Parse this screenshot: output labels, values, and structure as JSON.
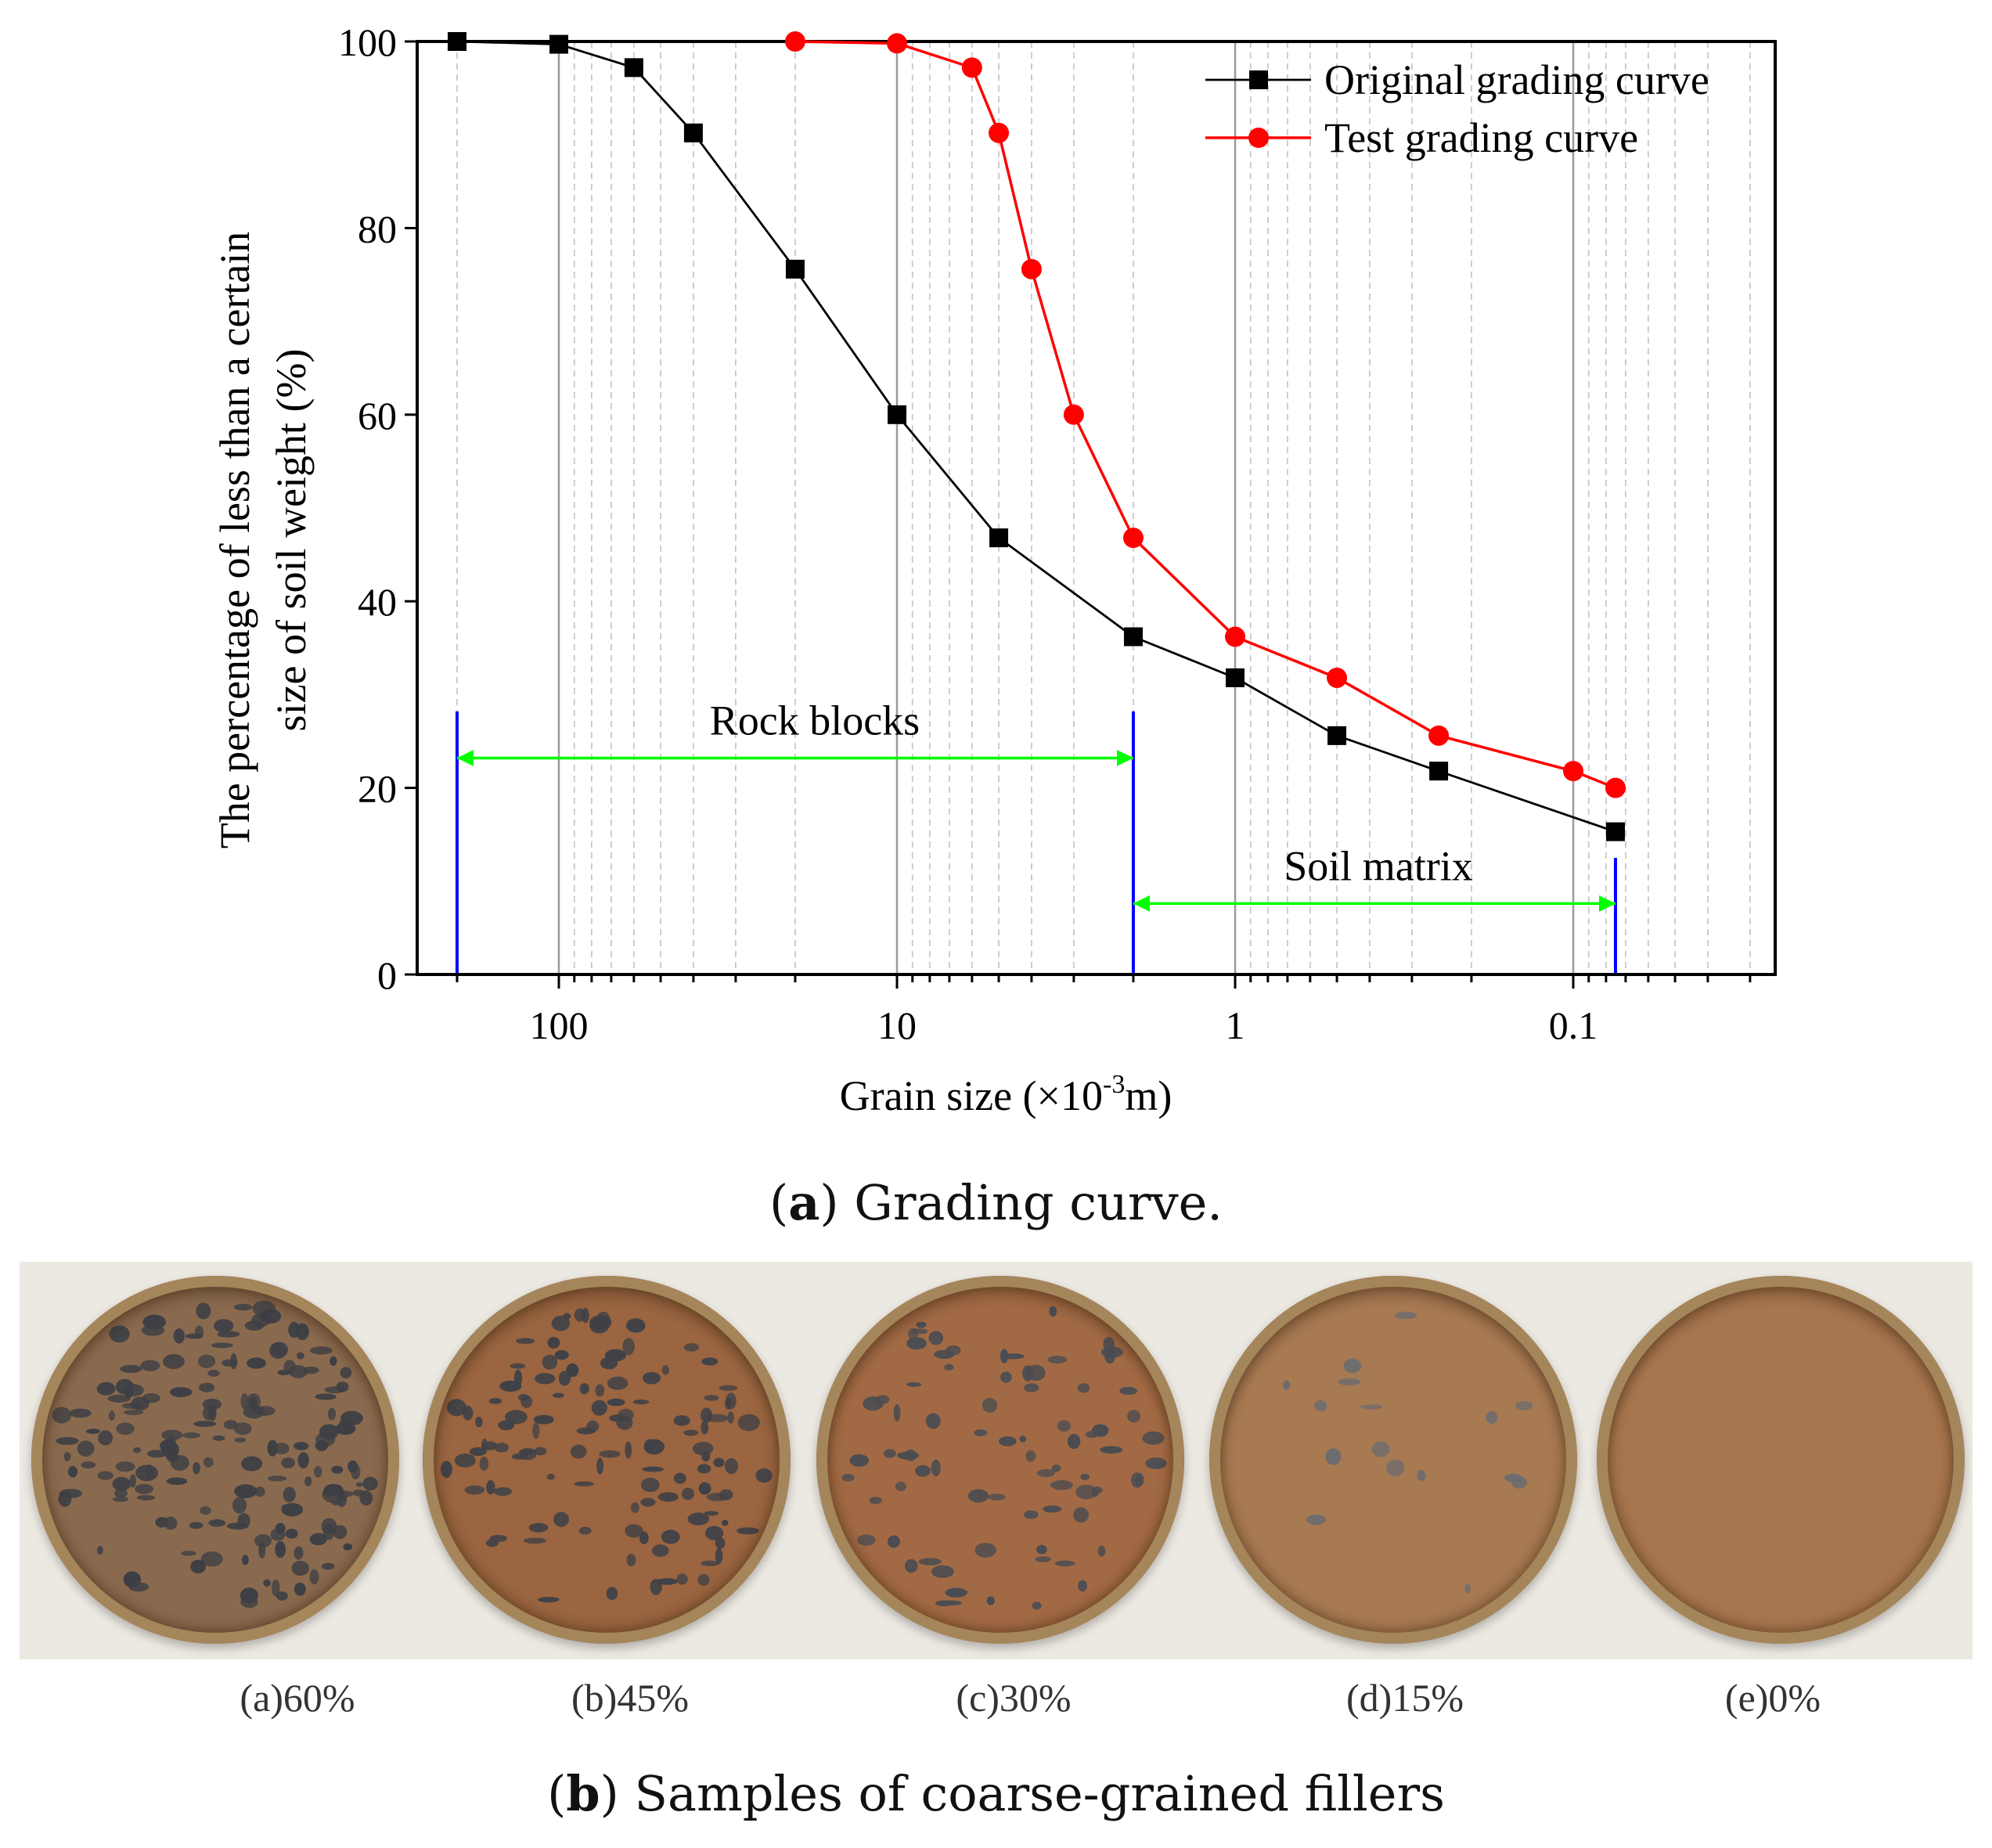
{
  "chart_data": {
    "type": "line",
    "xscale": "log",
    "x_reversed": true,
    "xlabel_text": "Grain size (×10",
    "xlabel_exp": "-3",
    "xlabel_tail": "m)",
    "ylabel_line1": "The percentage of less than a certain",
    "ylabel_line2": "size of soil weight (%)",
    "xlim": [
      200,
      0.025
    ],
    "ylim": [
      0,
      100
    ],
    "x_ticks": [
      100,
      10,
      1,
      0.1
    ],
    "x_tick_labels": [
      "100",
      "10",
      "1",
      "0.1"
    ],
    "y_ticks": [
      0,
      20,
      40,
      60,
      80,
      100
    ],
    "y_tick_labels": [
      "0",
      "20",
      "40",
      "60",
      "80",
      "100"
    ],
    "grid": "vertical minor dashed, vertical major solid",
    "legend_position": "top-right",
    "series": [
      {
        "name": "Original grading curve",
        "color": "#000000",
        "marker": "square",
        "x": [
          200,
          100,
          60,
          40,
          20,
          10,
          5,
          2,
          1,
          0.5,
          0.25,
          0.075
        ],
        "y": [
          100,
          99.7,
          97.2,
          90.2,
          75.6,
          60,
          46.8,
          36.2,
          31.8,
          25.6,
          21.8,
          15.3
        ]
      },
      {
        "name": "Test grading curve",
        "color": "#ff0000",
        "marker": "circle",
        "x": [
          20,
          10,
          6,
          5,
          4,
          3,
          2,
          1,
          0.5,
          0.25,
          0.1,
          0.075
        ],
        "y": [
          100,
          99.8,
          97.2,
          90.2,
          75.6,
          60,
          46.8,
          36.2,
          31.8,
          25.6,
          21.8,
          20
        ]
      }
    ],
    "annotations": [
      {
        "text": "Rock blocks",
        "x_from": 200,
        "x_to": 2,
        "y": 23.2
      },
      {
        "text": "Soil matrix",
        "x_from": 2,
        "x_to": 0.075,
        "y": 7.6
      }
    ],
    "boundary_lines": [
      {
        "x": 200,
        "y_top": 28.2,
        "color": "#0000ff"
      },
      {
        "x": 2,
        "y_top": 28.2,
        "color": "#0000ff"
      },
      {
        "x": 0.075,
        "y_top": 12.5,
        "color": "#0000ff"
      }
    ],
    "arrow_color": "#00ff00"
  },
  "captions": {
    "a_letter": "a",
    "a_text": "Grading curve.",
    "b_letter": "b",
    "b_text": "Samples of coarse-grained fillers"
  },
  "samples": [
    {
      "label": "(a)60%",
      "soil_color": "#8a6a4e",
      "rock_color": "#3d3f45",
      "rock_density": 0.75
    },
    {
      "label": "(b)45%",
      "soil_color": "#9a6540",
      "rock_color": "#3f4147",
      "rock_density": 0.55
    },
    {
      "label": "(c)30%",
      "soil_color": "#a26a44",
      "rock_color": "#4a4c52",
      "rock_density": 0.3
    },
    {
      "label": "(d)15%",
      "soil_color": "#a87a52",
      "rock_color": "#6b6b70",
      "rock_density": 0.06
    },
    {
      "label": "(e)0%",
      "soil_color": "#a8764e",
      "rock_color": "#7a5a40",
      "rock_density": 0.0
    }
  ]
}
